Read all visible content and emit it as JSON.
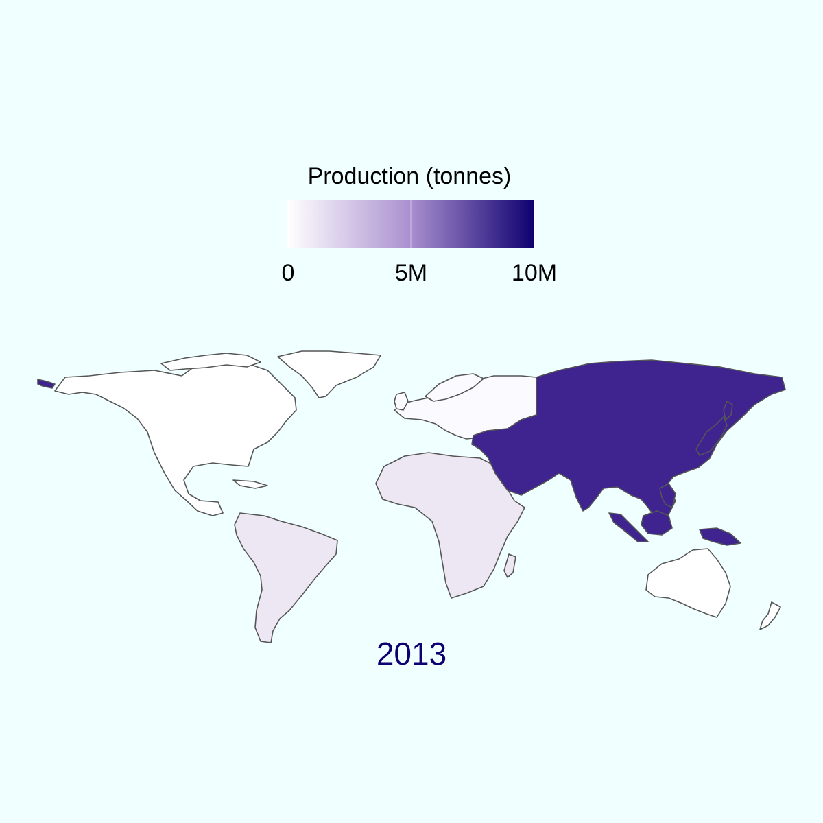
{
  "legend": {
    "title": "Production (tonnes)",
    "scale_min": 0,
    "scale_max": 10000000,
    "color_low": "#ffffff",
    "color_mid": "#a98fcf",
    "color_high": "#0e0070",
    "ticks": [
      {
        "value": 0,
        "label": "0"
      },
      {
        "value": 5000000,
        "label": "5M"
      },
      {
        "value": 10000000,
        "label": "10M"
      }
    ]
  },
  "year_label": "2013",
  "year_color": "#0e0070",
  "stroke_color": "#555555",
  "background": "#f0ffff",
  "regions": [
    {
      "name": "Asia",
      "value": 8700000,
      "color": "#3f2490"
    },
    {
      "name": "Africa",
      "value": 500000,
      "color": "#ede6f3"
    },
    {
      "name": "South America",
      "value": 500000,
      "color": "#ede6f3"
    },
    {
      "name": "North America",
      "value": 0,
      "color": "#ffffff"
    },
    {
      "name": "Europe",
      "value": 50000,
      "color": "#fbfaff"
    },
    {
      "name": "Oceania",
      "value": 0,
      "color": "#ffffff"
    }
  ]
}
